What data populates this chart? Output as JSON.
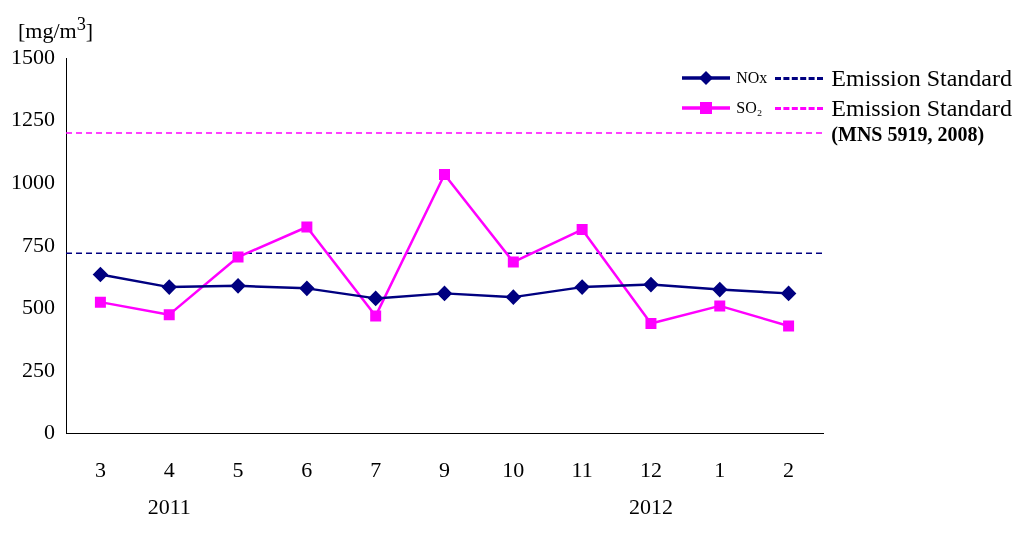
{
  "chart_data": {
    "type": "line",
    "ylabel": "[mg/m$^{3}$]",
    "categories": [
      "3",
      "4",
      "5",
      "6",
      "7",
      "9",
      "10",
      "11",
      "12",
      "1",
      "2"
    ],
    "series": [
      {
        "name": "NOx",
        "color": "#000080",
        "marker": "diamond",
        "values": [
          635,
          585,
          590,
          580,
          540,
          560,
          545,
          585,
          595,
          575,
          560
        ]
      },
      {
        "name": "SO₂",
        "color": "#ff00ff",
        "marker": "square",
        "values": [
          525,
          475,
          705,
          825,
          470,
          1035,
          685,
          815,
          440,
          510,
          430
        ]
      }
    ],
    "ylim": [
      0,
      1500
    ],
    "yticks": [
      0,
      250,
      500,
      750,
      1000,
      1250,
      1500
    ],
    "grid": false,
    "legend": "top right",
    "line_style": "solid",
    "ref_lines": [
      {
        "axis": "y",
        "value": 720,
        "label": "Emission Standard",
        "color": "#000080",
        "line_style": "dashed"
      },
      {
        "axis": "y",
        "value": 1200,
        "label": "Emission Standard",
        "color": "#ff00ff",
        "line_style": "dashed"
      }
    ],
    "annotations": [
      "(MNS 5919, 2008)",
      "2011",
      "2012"
    ]
  }
}
